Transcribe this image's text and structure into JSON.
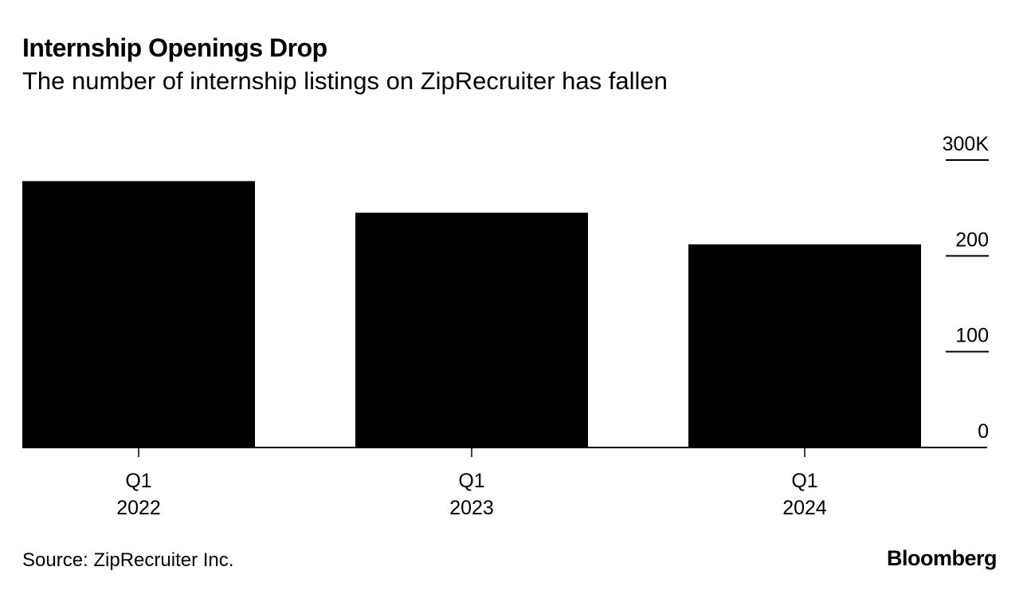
{
  "title": "Internship Openings Drop",
  "subtitle": "The number of internship listings on ZipRecruiter has fallen",
  "source": "Source: ZipRecruiter Inc.",
  "logo": "Bloomberg",
  "chart_data": {
    "type": "bar",
    "title": "Internship Openings Drop",
    "subtitle": "The number of internship listings on ZipRecruiter has fallen",
    "categories": [
      [
        "Q1",
        "2022"
      ],
      [
        "Q1",
        "2023"
      ],
      [
        "Q1",
        "2024"
      ]
    ],
    "values": [
      278,
      245,
      212
    ],
    "unit": "thousands",
    "ylim": [
      0,
      300
    ],
    "yticks": [
      0,
      100,
      200,
      300
    ],
    "ytick_labels": [
      "0",
      "100",
      "200",
      "300K"
    ],
    "y_axis_position": "right",
    "bar_color": "#000000",
    "grid": false,
    "xlabel": "",
    "ylabel": ""
  }
}
